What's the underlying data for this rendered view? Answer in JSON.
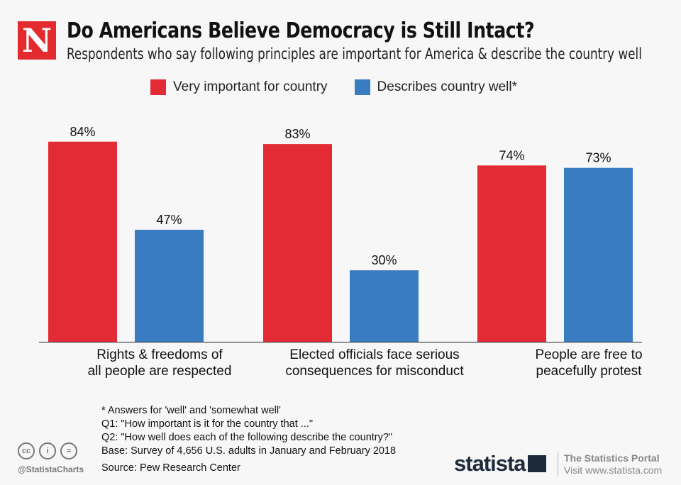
{
  "header": {
    "logo": "N",
    "title": "Do Americans Believe Democracy is Still Intact?",
    "subtitle": "Respondents who say following principles are important for America & describe the country well"
  },
  "chart_data": {
    "type": "bar",
    "categories": [
      "Rights & freedoms of all people are respected",
      "Elected officials face serious consequences for misconduct",
      "People are free to peacefully protest"
    ],
    "category_lines": [
      [
        "Rights & freedoms of",
        "all people are respected"
      ],
      [
        "Elected officials face serious",
        "consequences for misconduct"
      ],
      [
        "People are free to",
        "peacefully protest"
      ]
    ],
    "series": [
      {
        "name": "Very important for country",
        "color": "#e32b36",
        "values": [
          84,
          83,
          74
        ]
      },
      {
        "name": "Describes country well*",
        "color": "#3a7cc2",
        "values": [
          47,
          30,
          73
        ]
      }
    ],
    "value_suffix": "%",
    "ylim": [
      0,
      100
    ],
    "grid": false,
    "legend": "top-center"
  },
  "footer": {
    "notes": [
      "* Answers for 'well' and 'somewhat well'",
      "Q1: \"How important is it for the country that ...\"",
      "Q2: \"How well does each of the following describe the country?\"",
      "Base: Survey of 4,656 U.S. adults in January and February 2018"
    ],
    "source": "Source: Pew Research Center",
    "handle": "@StatistaCharts",
    "cc_icons": [
      "cc",
      "i",
      "="
    ],
    "brand": "statista",
    "portal_title": "The Statistics Portal",
    "portal_url": "Visit www.statista.com"
  }
}
